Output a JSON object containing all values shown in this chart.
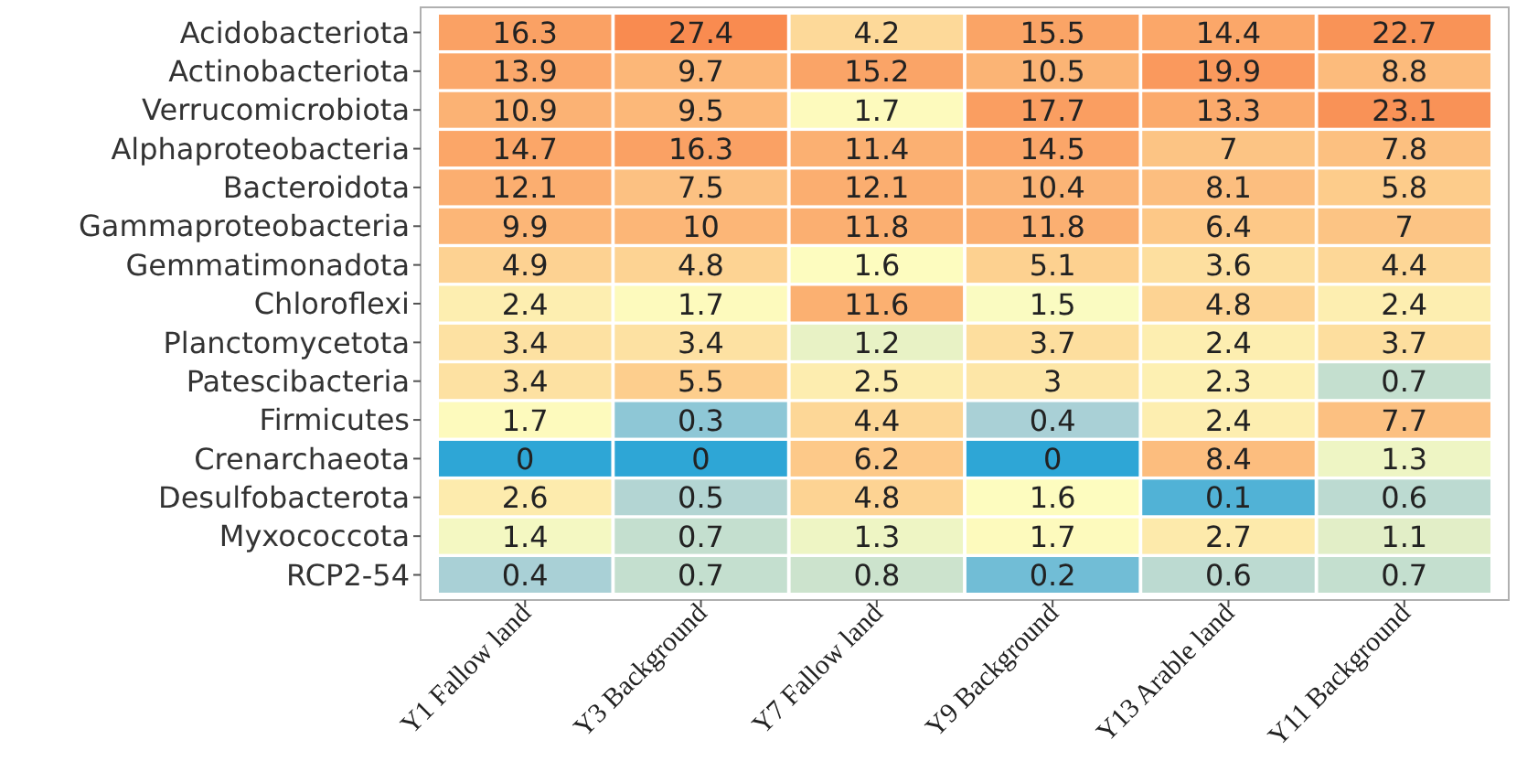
{
  "chart_data": {
    "type": "heatmap",
    "categories": [
      "Y1 Fallow land",
      "Y3 Background",
      "Y7 Fallow land",
      "Y9 Background",
      "Y13 Arable land",
      "Y11 Background"
    ],
    "y_categories": [
      "Acidobacteriota",
      "Actinobacteriota",
      "Verrucomicrobiota",
      "Alphaproteobacteria",
      "Bacteroidota",
      "Gammaproteobacteria",
      "Gemmatimonadota",
      "Chloroflexi",
      "Planctomycetota",
      "Patescibacteria",
      "Firmicutes",
      "Crenarchaeota",
      "Desulfobacterota",
      "Myxococcota",
      "RCP2-54"
    ],
    "cells": [
      [
        16.3,
        27.4,
        4.2,
        15.5,
        14.4,
        22.7
      ],
      [
        13.9,
        9.7,
        15.2,
        10.5,
        19.9,
        8.8
      ],
      [
        10.9,
        9.5,
        1.7,
        17.7,
        13.3,
        23.1
      ],
      [
        14.7,
        16.3,
        11.4,
        14.5,
        7,
        7.8
      ],
      [
        12.1,
        7.5,
        12.1,
        10.4,
        8.1,
        5.8
      ],
      [
        9.9,
        10,
        11.8,
        11.8,
        6.4,
        7
      ],
      [
        4.9,
        4.8,
        1.6,
        5.1,
        3.6,
        4.4
      ],
      [
        2.4,
        1.7,
        11.6,
        1.5,
        4.8,
        2.4
      ],
      [
        3.4,
        3.4,
        1.2,
        3.7,
        2.4,
        3.7
      ],
      [
        3.4,
        5.5,
        2.5,
        3,
        2.3,
        0.7
      ],
      [
        1.7,
        0.3,
        4.4,
        0.4,
        2.4,
        7.7
      ],
      [
        0,
        0,
        6.2,
        0,
        8.4,
        1.3
      ],
      [
        2.6,
        0.5,
        4.8,
        1.6,
        0.1,
        0.6
      ],
      [
        1.4,
        0.7,
        1.3,
        1.7,
        2.7,
        1.1
      ],
      [
        0.4,
        0.7,
        0.8,
        0.2,
        0.6,
        0.7
      ]
    ],
    "data_labels": true
  }
}
